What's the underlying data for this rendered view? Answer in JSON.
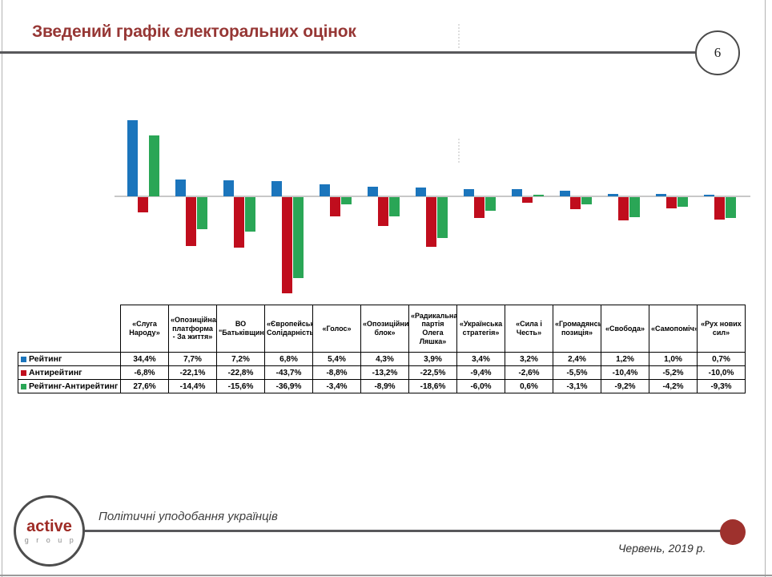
{
  "slide": {
    "title": "Зведений графік електоральних оцінок",
    "page_number": "6",
    "footer_caption": "Політичні уподобання українців",
    "footer_date": "Червень, 2019 р.",
    "logo": {
      "line1": "active",
      "line2": "g r o u p"
    }
  },
  "colors": {
    "title": "#963634",
    "rating_blue": "#1b75bc",
    "antirating_red": "#c00d1d",
    "net_green": "#2aa656",
    "rule_gray": "#58585b",
    "zero_line": "#c8c8c8",
    "accent_dot": "#9e312d"
  },
  "chart_data": {
    "type": "bar",
    "title": "Зведений графік електоральних оцінок",
    "xlabel": "",
    "ylabel": "",
    "ylim": [
      -45,
      36
    ],
    "grid": false,
    "legend_position": "table-left",
    "value_suffix": "%",
    "decimal_separator": ",",
    "categories": [
      "«Слуга Народу»",
      "«Опозиційна платформа - За життя»",
      "ВО \"Батьківщина\"",
      "«Європейська Солідарність»",
      "«Голос»",
      "«Опозиційний блок»",
      "«Радикальна партія Олега Ляшка»",
      "«Українська стратегія»",
      "«Сила і Честь»",
      "«Громадянська позиція»",
      "«Свобода»",
      "«Самопоміч»",
      "«Рух нових сил»"
    ],
    "series": [
      {
        "name": "Рейтинг",
        "color": "#1b75bc",
        "values": [
          34.4,
          7.7,
          7.2,
          6.8,
          5.4,
          4.3,
          3.9,
          3.4,
          3.2,
          2.4,
          1.2,
          1.0,
          0.7
        ]
      },
      {
        "name": "Антирейтинг",
        "color": "#c00d1d",
        "values": [
          -6.8,
          -22.1,
          -22.8,
          -43.7,
          -8.8,
          -13.2,
          -22.5,
          -9.4,
          -2.6,
          -5.5,
          -10.4,
          -5.2,
          -10.0
        ]
      },
      {
        "name": "Рейтинг-Антирейтинг",
        "color": "#2aa656",
        "values": [
          27.6,
          -14.4,
          -15.6,
          -36.9,
          -3.4,
          -8.9,
          -18.6,
          -6.0,
          0.6,
          -3.1,
          -9.2,
          -4.2,
          -9.3
        ]
      }
    ]
  }
}
